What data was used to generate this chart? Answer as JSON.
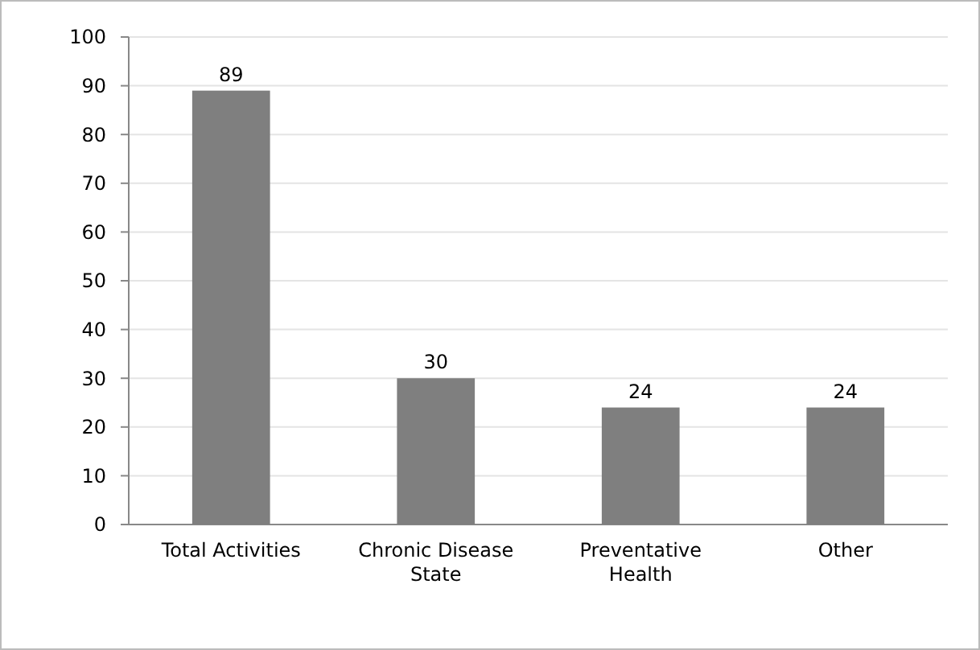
{
  "chart_data": {
    "type": "bar",
    "categories": [
      "Total Activities",
      "Chronic Disease State",
      "Preventative Health",
      "Other"
    ],
    "values": [
      89,
      30,
      24,
      24
    ],
    "color": "#7f7f7f",
    "ylim": [
      0,
      100
    ],
    "yticks": [
      0,
      10,
      20,
      30,
      40,
      50,
      60,
      70,
      80,
      90,
      100
    ],
    "data_labels": true,
    "grid": "y"
  }
}
